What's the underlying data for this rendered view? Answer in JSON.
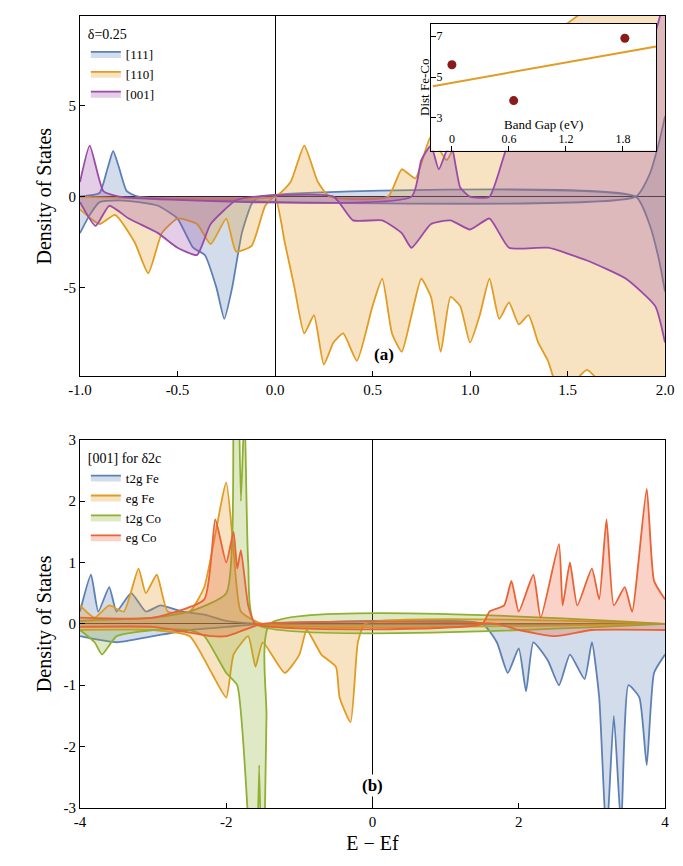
{
  "chart_data": [
    {
      "type": "area",
      "legend_title": "δ=0.25",
      "legend": "upper left",
      "grid": false,
      "y_label": "Density of States",
      "annotations": [
        "(a)"
      ],
      "xlim": [
        -1.0,
        2.0
      ],
      "ylim": [
        -9.85,
        9.9
      ],
      "xticks": [
        {
          "value": -1.0,
          "label": "-1.0"
        },
        {
          "value": -0.5,
          "label": "-0.5"
        },
        {
          "value": 0.0,
          "label": "0.0"
        },
        {
          "value": 0.5,
          "label": "0.5"
        },
        {
          "value": 1.0,
          "label": "1.0"
        },
        {
          "value": 1.5,
          "label": "1.5"
        },
        {
          "value": 2.0,
          "label": "2.0"
        }
      ],
      "yticks": [
        -5,
        0,
        5
      ],
      "series": [
        {
          "name": "[111]",
          "color": "#5E81B5",
          "up": {
            "x": [
              -1,
              -0.9,
              -0.86,
              -0.83,
              -0.8,
              -0.76,
              -0.7,
              1.85,
              1.92,
              1.97,
              2.0
            ],
            "values": [
              0,
              0.2,
              1.5,
              2.5,
              1.6,
              0.3,
              0,
              0,
              1.2,
              3.0,
              4.4
            ]
          },
          "down": {
            "x": [
              -1,
              -0.95,
              -0.9,
              -0.8,
              -0.7,
              -0.6,
              -0.5,
              -0.42,
              -0.36,
              -0.3,
              -0.26,
              -0.22,
              -0.17,
              -0.12,
              -0.08,
              1.85,
              1.92,
              1.97,
              2.0
            ],
            "values": [
              -2.0,
              -1.0,
              -0.3,
              -0.2,
              -0.3,
              -0.5,
              -1.2,
              -2.8,
              -3.2,
              -5.0,
              -6.7,
              -5.0,
              -2.0,
              -0.4,
              0,
              0,
              -1.5,
              -3.5,
              -5.2
            ]
          }
        },
        {
          "name": "[110]",
          "color": "#E19C24",
          "up": {
            "x": [
              -1,
              0,
              0.08,
              0.15,
              0.22,
              0.28,
              0.58,
              0.65,
              0.72,
              0.8,
              0.88,
              0.95,
              1.05,
              1.2,
              1.35,
              1.5,
              1.7,
              1.9,
              2.0
            ],
            "values": [
              0,
              0,
              0.8,
              2.8,
              0.8,
              0,
              0,
              1.5,
              1.0,
              3.3,
              2.0,
              3.5,
              5.0,
              7.0,
              8.5,
              9.5,
              11,
              11,
              11
            ]
          },
          "down": {
            "x": [
              -1,
              -0.9,
              -0.82,
              -0.72,
              -0.65,
              -0.58,
              -0.5,
              -0.4,
              -0.33,
              -0.25,
              -0.2,
              -0.12,
              -0.05,
              0,
              0.05,
              0.1,
              0.15,
              0.2,
              0.25,
              0.3,
              0.35,
              0.42,
              0.5,
              0.55,
              0.6,
              0.65,
              0.7,
              0.75,
              0.8,
              0.85,
              0.9,
              0.95,
              1.0,
              1.05,
              1.1,
              1.15,
              1.2,
              1.25,
              1.3,
              1.35,
              1.4,
              1.45,
              1.5,
              1.6,
              1.7,
              1.8,
              1.9,
              2.0
            ],
            "values": [
              -0.7,
              -1.5,
              -1.0,
              -2.5,
              -4.2,
              -2.0,
              -1.2,
              -1.5,
              -2.6,
              -1.2,
              -3.0,
              -2.7,
              -0.5,
              0,
              -2.5,
              -5.0,
              -7.5,
              -6.5,
              -9.2,
              -8.0,
              -7.5,
              -9.0,
              -6.0,
              -4.5,
              -7.5,
              -8.5,
              -6.5,
              -4.5,
              -5.5,
              -8.5,
              -5.5,
              -6.0,
              -8.0,
              -6.5,
              -4.5,
              -6.7,
              -5.8,
              -7.0,
              -6.5,
              -8.0,
              -9.0,
              -10.5,
              -10.5,
              -9.5,
              -10.5,
              -10.5,
              -10.5,
              -10.5
            ]
          }
        },
        {
          "name": "[001]",
          "color": "#9A4BA8",
          "up": {
            "x": [
              -1,
              -0.95,
              -0.88,
              -0.8,
              0.7,
              0.75,
              0.8,
              0.84,
              0.9,
              0.95,
              1.0,
              1.1,
              1.2,
              1.3,
              1.5,
              1.7,
              1.85,
              1.95,
              2.0
            ],
            "values": [
              0.8,
              2.8,
              0.3,
              0,
              0,
              2.0,
              2.8,
              1.5,
              3.0,
              0.5,
              0,
              0,
              3.0,
              4.0,
              5.5,
              7.0,
              7.0,
              9.0,
              11
            ]
          },
          "down": {
            "x": [
              -1,
              -0.92,
              -0.85,
              -0.75,
              -0.6,
              -0.5,
              -0.4,
              -0.33,
              -0.2,
              -0.1,
              0.3,
              0.4,
              0.55,
              0.65,
              0.7,
              0.8,
              0.9,
              1.0,
              1.1,
              1.2,
              1.4,
              1.6,
              1.8,
              1.95,
              2.0
            ],
            "values": [
              -0.3,
              -1.6,
              -0.5,
              -1.2,
              -2.0,
              -2.8,
              -3.2,
              -1.5,
              -0.2,
              0,
              0,
              -1.3,
              -1.3,
              -2.0,
              -2.8,
              -1.5,
              -1.3,
              -1.8,
              -1.2,
              -2.8,
              -2.8,
              -3.5,
              -4.5,
              -6.0,
              -8.0
            ]
          }
        }
      ]
    },
    {
      "type": "area",
      "legend_title": "[001] for δ2c",
      "legend": "upper left",
      "grid": false,
      "x_label": "E − Ef",
      "y_label": "Density of States",
      "annotations": [
        "(b)"
      ],
      "xlim": [
        -4,
        4
      ],
      "ylim": [
        -3,
        3
      ],
      "xticks": [
        -4,
        -2,
        0,
        2,
        4
      ],
      "yticks": [
        -3,
        -2,
        -1,
        0,
        1,
        2,
        3
      ],
      "series": [
        {
          "name": "t2g Fe",
          "color": "#5E81B5",
          "up": {
            "x": [
              -4,
              -3.85,
              -3.75,
              -3.6,
              -3.5,
              -3.3,
              -3.1,
              -2.9,
              -2.6,
              -2.3,
              -2.0,
              -1.5,
              4
            ],
            "values": [
              0.2,
              0.8,
              0.2,
              0.6,
              0.2,
              0.5,
              0.2,
              0.3,
              0.2,
              0.15,
              0.05,
              0,
              0
            ]
          },
          "down": {
            "x": [
              -4,
              -3.5,
              -3,
              -2.5,
              -2,
              -1.5,
              1.5,
              1.7,
              1.85,
              2.0,
              2.1,
              2.2,
              2.4,
              2.55,
              2.7,
              2.9,
              3.0,
              3.1,
              3.2,
              3.3,
              3.4,
              3.5,
              3.65,
              3.75,
              3.85,
              4
            ],
            "values": [
              -0.2,
              -0.3,
              -0.2,
              -0.1,
              -0.05,
              0,
              0,
              -0.3,
              -0.8,
              -0.4,
              -1.1,
              -0.3,
              -0.6,
              -1.0,
              -0.5,
              -0.9,
              -0.3,
              -1.2,
              -3.5,
              -1.5,
              -3.3,
              -1.0,
              -1.2,
              -2.3,
              -0.8,
              -0.5
            ]
          }
        },
        {
          "name": "eg Fe",
          "color": "#E19C24",
          "up": {
            "x": [
              -4,
              -3.8,
              -3.6,
              -3.4,
              -3.2,
              -3.1,
              -2.95,
              -2.8,
              -2.5,
              -2.3,
              -2.0,
              -1.9,
              -1.8,
              -1.5,
              4
            ],
            "values": [
              0.3,
              0.1,
              0.3,
              0.2,
              0.9,
              0.5,
              0.8,
              0.2,
              0.2,
              0.6,
              2.3,
              1.2,
              0.2,
              0,
              0
            ]
          },
          "down": {
            "x": [
              -4,
              -3,
              -2.5,
              -2.2,
              -2.0,
              -1.9,
              -1.7,
              -1.6,
              -1.5,
              -1.2,
              -1.0,
              -0.9,
              -0.7,
              -0.5,
              -0.45,
              -0.3,
              -0.2,
              -0.1,
              4
            ],
            "values": [
              -0.1,
              -0.1,
              -0.2,
              -0.8,
              -1.2,
              -0.5,
              -0.2,
              -0.7,
              -0.3,
              -0.8,
              -0.5,
              -0.1,
              -0.5,
              -0.7,
              -1.2,
              -1.6,
              -0.3,
              0,
              0
            ]
          }
        },
        {
          "name": "t2g Co",
          "color": "#8FB032",
          "up": {
            "x": [
              -4,
              -3,
              -2.5,
              -2.0,
              -1.9,
              -1.85,
              -1.8,
              -1.75,
              -1.7,
              -1.6,
              4
            ],
            "values": [
              0.05,
              0.1,
              0.2,
              0.5,
              3.5,
              5,
              2,
              3.5,
              1.0,
              0,
              0
            ]
          },
          "down": {
            "x": [
              -4,
              -3.8,
              -3.7,
              -3.5,
              -3,
              -2.5,
              -2.3,
              -2.0,
              -1.85,
              -1.7,
              -1.6,
              -1.55,
              -1.5,
              -1.45,
              -1.4,
              4
            ],
            "values": [
              -0.1,
              -0.3,
              -0.5,
              -0.2,
              -0.1,
              -0.1,
              -0.2,
              -0.8,
              -1.0,
              -3.2,
              -5,
              -2.3,
              -5,
              -1.5,
              0,
              0
            ]
          }
        },
        {
          "name": "eg Co",
          "color": "#EB6235",
          "up": {
            "x": [
              -4,
              -3,
              -2.3,
              -2.15,
              -2.0,
              -1.9,
              -1.85,
              -1.8,
              -1.7,
              -1.6,
              1.5,
              1.6,
              1.8,
              1.9,
              2.0,
              2.2,
              2.3,
              2.55,
              2.6,
              2.7,
              2.8,
              3.0,
              3.1,
              3.2,
              3.3,
              3.45,
              3.55,
              3.75,
              3.85,
              4
            ],
            "values": [
              0.1,
              0.1,
              0.4,
              1.7,
              1.0,
              1.5,
              0.9,
              1.2,
              0.3,
              0,
              0,
              0.2,
              0.3,
              0.7,
              0.2,
              0.8,
              0.1,
              1.3,
              0.3,
              1.0,
              0.3,
              0.9,
              0.4,
              1.7,
              0.3,
              0.6,
              0.2,
              2.2,
              0.7,
              0.4
            ]
          },
          "down": {
            "x": [
              -4,
              -3,
              -2.2,
              -2.0,
              -1.5,
              1.7,
              2,
              2.5,
              3,
              4
            ],
            "values": [
              -0.05,
              -0.05,
              -0.2,
              -0.2,
              0,
              0,
              -0.1,
              -0.2,
              -0.1,
              -0.1
            ]
          }
        }
      ]
    },
    {
      "type": "scatter",
      "grid": false,
      "x_label": "Band Gap (eV)",
      "y_label": "Dist Fe-Co",
      "xlim": [
        -0.22,
        2.15
      ],
      "ylim": [
        1.4,
        7.6
      ],
      "xticks": [
        0,
        0.6,
        1.2,
        1.8
      ],
      "yticks": [
        3,
        5,
        7
      ],
      "series": [
        {
          "type": "scatter",
          "marker": "circle",
          "color": "#8B1A1A",
          "x": [
            0,
            0.65,
            1.82
          ],
          "values": [
            5.6,
            3.85,
            6.9
          ]
        },
        {
          "type": "line",
          "line_style": "solid",
          "color": "#E19C24",
          "x": [
            -0.2,
            2.15
          ],
          "values": [
            4.55,
            6.5
          ]
        }
      ]
    }
  ]
}
